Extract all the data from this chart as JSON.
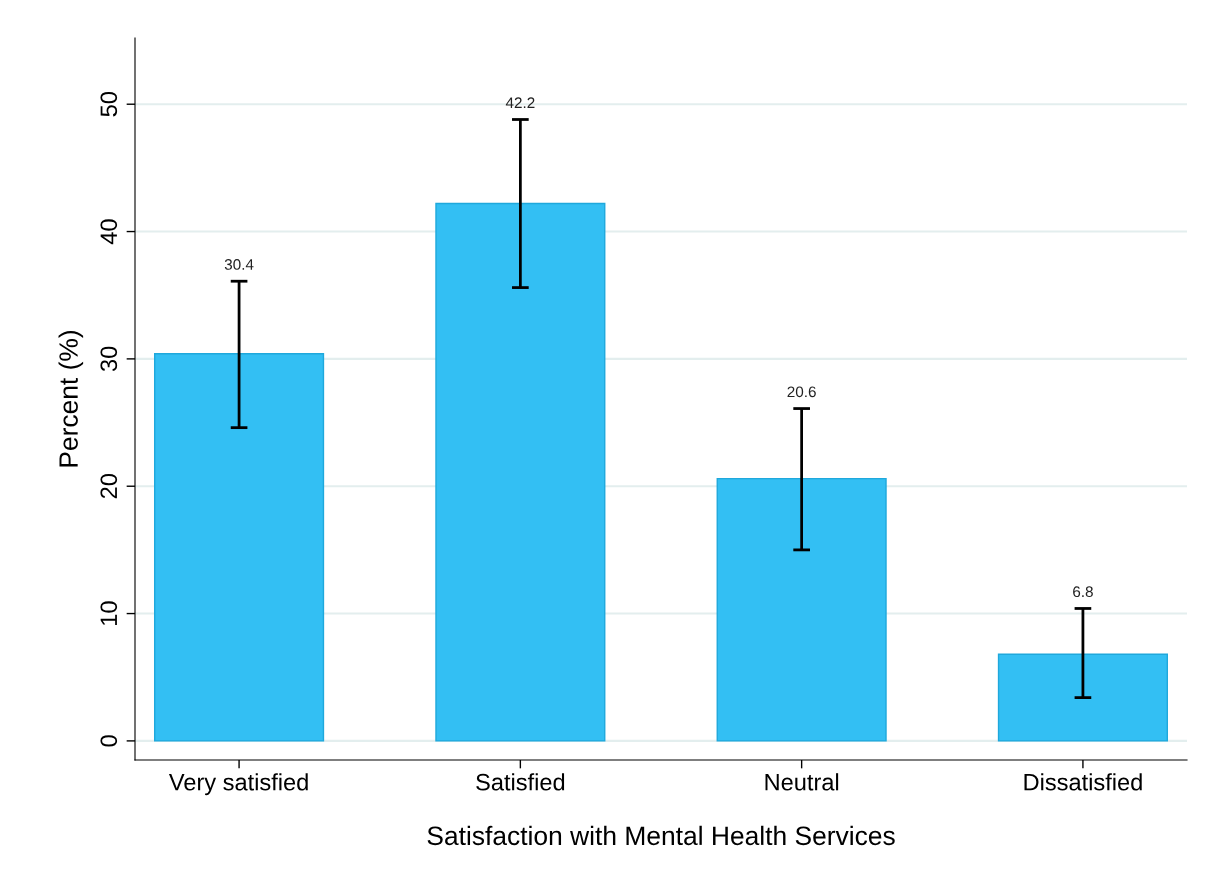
{
  "chart_data": {
    "type": "bar",
    "xlabel": "Satisfaction with Mental Health Services",
    "ylabel": "Percent (%)",
    "categories": [
      "Very satisfied",
      "Satisfied",
      "Neutral",
      "Dissatisfied"
    ],
    "values": [
      30.4,
      42.2,
      20.6,
      6.8
    ],
    "errors": [
      [
        24.6,
        36.1
      ],
      [
        35.6,
        48.8
      ],
      [
        15.0,
        26.1
      ],
      [
        3.4,
        10.4
      ]
    ],
    "color": "#33bff3",
    "ylim": [
      -1.5,
      55.2
    ],
    "yticks": [
      0,
      10,
      20,
      30,
      40,
      50
    ],
    "grid": "y",
    "annotations": [
      {
        "text": "30.4",
        "x": "Very satisfied",
        "y": 36.1
      },
      {
        "text": "42.2",
        "x": "Satisfied",
        "y": 48.8
      },
      {
        "text": "20.6",
        "x": "Neutral",
        "y": 26.1
      },
      {
        "text": "6.8",
        "x": "Dissatisfied",
        "y": 10.4
      }
    ]
  }
}
